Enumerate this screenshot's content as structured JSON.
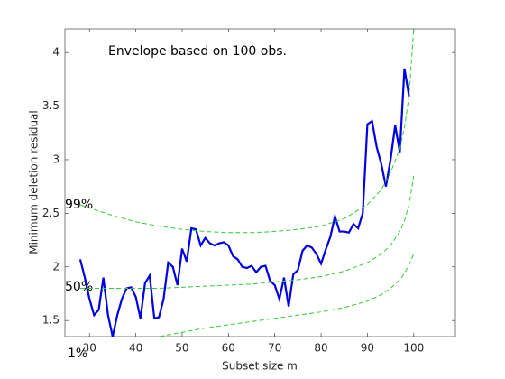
{
  "chart_data": {
    "type": "line",
    "title": "Envelope based on 100 obs.",
    "x_label": "Subset size m",
    "y_label": "Minimum deletion residual",
    "annotations": [
      "99%",
      "50%",
      "1%"
    ],
    "xlim": [
      24.7,
      109
    ],
    "xticks": [
      30,
      40,
      50,
      60,
      70,
      80,
      90,
      100
    ],
    "ylim": [
      1.35,
      4.22
    ],
    "yticks": [
      1.5,
      2,
      2.5,
      3,
      3.5,
      4
    ],
    "series": [
      {
        "color": "#0000e6",
        "style": "solid",
        "x": [
          28,
          29,
          30,
          31,
          32,
          33,
          34,
          35,
          36,
          37,
          38,
          39,
          40,
          41,
          42,
          43,
          44,
          45,
          46,
          47,
          48,
          49,
          50,
          51,
          52,
          53,
          54,
          55,
          56,
          57,
          58,
          59,
          60,
          61,
          62,
          63,
          64,
          65,
          66,
          67,
          68,
          69,
          70,
          71,
          72,
          73,
          74,
          75,
          76,
          77,
          78,
          79,
          80,
          81,
          82,
          83,
          84,
          85,
          86,
          87,
          88,
          89,
          90,
          91,
          92,
          93,
          94,
          95,
          96,
          97,
          98,
          99
        ],
        "values": [
          2.07,
          1.9,
          1.7,
          1.55,
          1.6,
          1.9,
          1.55,
          1.35,
          1.55,
          1.7,
          1.8,
          1.81,
          1.72,
          1.52,
          1.85,
          1.92,
          1.52,
          1.53,
          1.7,
          2.04,
          2.0,
          1.83,
          2.17,
          2.05,
          2.36,
          2.35,
          2.2,
          2.27,
          2.22,
          2.2,
          2.22,
          2.23,
          2.2,
          2.1,
          2.07,
          2.0,
          1.99,
          2.01,
          1.95,
          2.0,
          2.01,
          1.87,
          1.83,
          1.7,
          1.9,
          1.63,
          1.93,
          1.97,
          2.15,
          2.2,
          2.18,
          2.12,
          2.03,
          2.16,
          2.28,
          2.47,
          2.33,
          2.33,
          2.32,
          2.4,
          2.36,
          2.5,
          3.33,
          3.36,
          3.12,
          2.96,
          2.75,
          3.0,
          3.32,
          3.07,
          3.85,
          3.59
        ]
      },
      {
        "color": "#33cc33",
        "style": "dashed",
        "x": [
          28,
          30,
          35,
          40,
          45,
          50,
          55,
          60,
          65,
          70,
          75,
          80,
          85,
          90,
          93,
          95,
          97,
          98,
          99,
          100
        ],
        "values": [
          2.58,
          2.55,
          2.48,
          2.42,
          2.38,
          2.35,
          2.33,
          2.32,
          2.32,
          2.33,
          2.35,
          2.38,
          2.45,
          2.58,
          2.72,
          2.88,
          3.1,
          3.3,
          3.6,
          4.22
        ]
      },
      {
        "color": "#33cc33",
        "style": "dashed",
        "x": [
          28,
          30,
          35,
          40,
          45,
          50,
          55,
          60,
          65,
          70,
          75,
          80,
          85,
          90,
          93,
          95,
          97,
          98,
          99,
          100
        ],
        "values": [
          1.8,
          1.8,
          1.8,
          1.8,
          1.8,
          1.81,
          1.82,
          1.83,
          1.84,
          1.86,
          1.88,
          1.91,
          1.96,
          2.04,
          2.12,
          2.2,
          2.33,
          2.43,
          2.58,
          2.85
        ]
      },
      {
        "color": "#33cc33",
        "style": "dashed",
        "x": [
          28,
          30,
          35,
          40,
          45,
          50,
          55,
          60,
          65,
          70,
          75,
          80,
          85,
          90,
          93,
          95,
          97,
          98,
          99,
          100
        ],
        "values": [
          1.05,
          1.12,
          1.22,
          1.3,
          1.35,
          1.39,
          1.43,
          1.46,
          1.49,
          1.52,
          1.55,
          1.58,
          1.62,
          1.68,
          1.74,
          1.8,
          1.88,
          1.94,
          2.02,
          2.12
        ]
      }
    ]
  }
}
